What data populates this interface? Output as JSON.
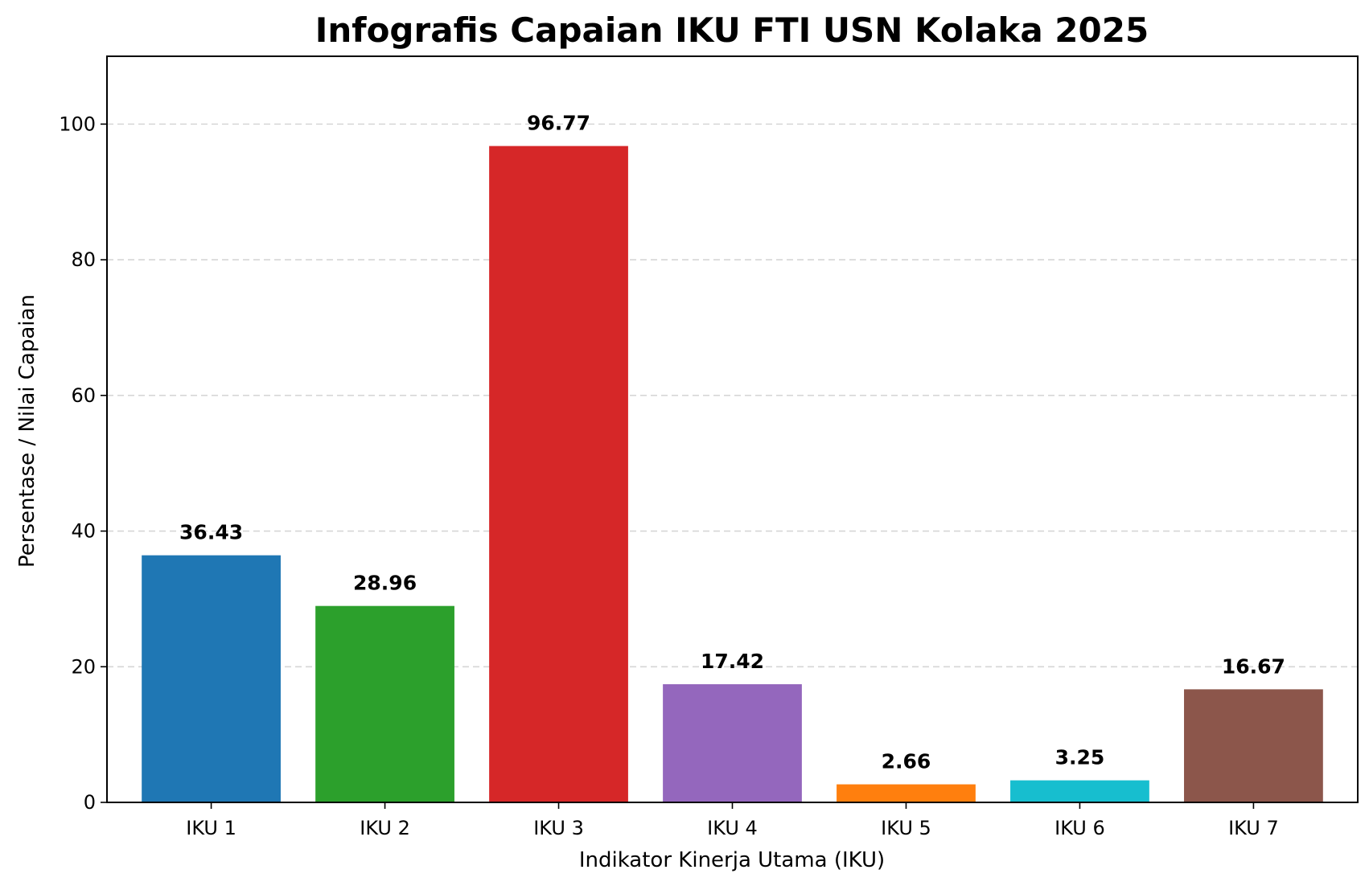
{
  "chart_data": {
    "type": "bar",
    "title": "Infografis Capaian IKU FTI USN Kolaka 2025",
    "xlabel": "Indikator Kinerja Utama (IKU)",
    "ylabel": "Persentase / Nilai Capaian",
    "categories": [
      "IKU 1",
      "IKU 2",
      "IKU 3",
      "IKU 4",
      "IKU 5",
      "IKU 6",
      "IKU 7"
    ],
    "values": [
      36.43,
      28.96,
      96.77,
      17.42,
      2.66,
      3.25,
      16.67
    ],
    "value_labels": [
      "36.43",
      "28.96",
      "96.77",
      "17.42",
      "2.66",
      "3.25",
      "16.67"
    ],
    "colors": [
      "#1f77b4",
      "#2ca02c",
      "#d62728",
      "#9467bd",
      "#ff7f0e",
      "#17becf",
      "#8c564b"
    ],
    "ylim": [
      0,
      110
    ],
    "yticks": [
      0,
      20,
      40,
      60,
      80,
      100
    ],
    "ytick_labels": [
      "0",
      "20",
      "40",
      "60",
      "80",
      "100"
    ],
    "grid": "y-dashed",
    "legend": "none"
  }
}
